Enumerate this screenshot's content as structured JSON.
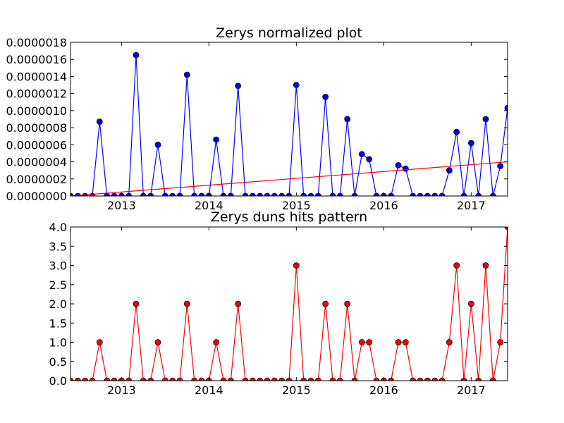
{
  "figure": {
    "background": "#ffffff"
  },
  "chart_data": [
    {
      "type": "line",
      "title": "Zerys normalized plot",
      "xlabel": "",
      "ylabel": "",
      "x_axis": {
        "type": "date",
        "min": "2012-06",
        "max": "2017-06",
        "ticks": [
          "2013-01",
          "2014-01",
          "2015-01",
          "2016-01",
          "2017-01"
        ],
        "tick_labels": [
          "2013",
          "2014",
          "2015",
          "2016",
          "2017"
        ]
      },
      "y_axis": {
        "min": 0.0,
        "max": 1.8e-06,
        "ticks": [
          0.0,
          2e-07,
          4e-07,
          6e-07,
          8e-07,
          1e-06,
          1.2e-06,
          1.4e-06,
          1.6e-06,
          1.8e-06
        ],
        "tick_labels": [
          "0.0000000",
          "0.0000002",
          "0.0000004",
          "0.0000006",
          "0.0000008",
          "0.0000010",
          "0.0000012",
          "0.0000014",
          "0.0000016",
          "0.0000018"
        ]
      },
      "grid": false,
      "x": [
        "2012-06",
        "2012-07",
        "2012-08",
        "2012-09",
        "2012-10",
        "2012-11",
        "2012-12",
        "2013-01",
        "2013-02",
        "2013-03",
        "2013-04",
        "2013-05",
        "2013-06",
        "2013-07",
        "2013-08",
        "2013-09",
        "2013-10",
        "2013-11",
        "2013-12",
        "2014-01",
        "2014-02",
        "2014-03",
        "2014-04",
        "2014-05",
        "2014-06",
        "2014-07",
        "2014-08",
        "2014-09",
        "2014-10",
        "2014-11",
        "2014-12",
        "2015-01",
        "2015-02",
        "2015-03",
        "2015-04",
        "2015-05",
        "2015-06",
        "2015-07",
        "2015-08",
        "2015-09",
        "2015-10",
        "2015-11",
        "2015-12",
        "2016-01",
        "2016-02",
        "2016-03",
        "2016-04",
        "2016-05",
        "2016-06",
        "2016-07",
        "2016-08",
        "2016-09",
        "2016-10",
        "2016-11",
        "2016-12",
        "2017-01",
        "2017-02",
        "2017-03",
        "2017-04",
        "2017-05",
        "2017-06"
      ],
      "series": [
        {
          "color": "#0000ff",
          "marker": "circle",
          "values": [
            0,
            0,
            0,
            0,
            8.7e-07,
            0,
            0,
            0,
            0,
            1.65e-06,
            0,
            0,
            6e-07,
            0,
            0,
            0,
            1.42e-06,
            0,
            0,
            0,
            6.6e-07,
            0,
            0,
            1.29e-06,
            0,
            0,
            0,
            0,
            0,
            0,
            0,
            1.3e-06,
            0,
            0,
            0,
            1.16e-06,
            0,
            0,
            9e-07,
            0,
            4.9e-07,
            4.3e-07,
            0,
            0,
            0,
            3.6e-07,
            3.2e-07,
            0,
            0,
            0,
            0,
            0,
            3e-07,
            7.5e-07,
            0,
            6.2e-07,
            0,
            9e-07,
            0,
            3.5e-07,
            1.03e-06
          ]
        },
        {
          "type": "trendline",
          "color": "#ff0000",
          "x": [
            "2012-06",
            "2017-06"
          ],
          "values": [
            0.0,
            4e-07
          ]
        }
      ]
    },
    {
      "type": "line",
      "title": "Zerys duns hits pattern",
      "xlabel": "",
      "ylabel": "",
      "x_axis": {
        "type": "date",
        "min": "2012-06",
        "max": "2017-06",
        "ticks": [
          "2013-01",
          "2014-01",
          "2015-01",
          "2016-01",
          "2017-01"
        ],
        "tick_labels": [
          "2013",
          "2014",
          "2015",
          "2016",
          "2017"
        ]
      },
      "y_axis": {
        "min": 0.0,
        "max": 4.0,
        "ticks": [
          0.0,
          0.5,
          1.0,
          1.5,
          2.0,
          2.5,
          3.0,
          3.5,
          4.0
        ],
        "tick_labels": [
          "0.0",
          "0.5",
          "1.0",
          "1.5",
          "2.0",
          "2.5",
          "3.0",
          "3.5",
          "4.0"
        ]
      },
      "grid": false,
      "x": [
        "2012-06",
        "2012-07",
        "2012-08",
        "2012-09",
        "2012-10",
        "2012-11",
        "2012-12",
        "2013-01",
        "2013-02",
        "2013-03",
        "2013-04",
        "2013-05",
        "2013-06",
        "2013-07",
        "2013-08",
        "2013-09",
        "2013-10",
        "2013-11",
        "2013-12",
        "2014-01",
        "2014-02",
        "2014-03",
        "2014-04",
        "2014-05",
        "2014-06",
        "2014-07",
        "2014-08",
        "2014-09",
        "2014-10",
        "2014-11",
        "2014-12",
        "2015-01",
        "2015-02",
        "2015-03",
        "2015-04",
        "2015-05",
        "2015-06",
        "2015-07",
        "2015-08",
        "2015-09",
        "2015-10",
        "2015-11",
        "2015-12",
        "2016-01",
        "2016-02",
        "2016-03",
        "2016-04",
        "2016-05",
        "2016-06",
        "2016-07",
        "2016-08",
        "2016-09",
        "2016-10",
        "2016-11",
        "2016-12",
        "2017-01",
        "2017-02",
        "2017-03",
        "2017-04",
        "2017-05",
        "2017-06"
      ],
      "series": [
        {
          "color": "#ff0000",
          "marker": "circle",
          "values": [
            0,
            0,
            0,
            0,
            1,
            0,
            0,
            0,
            0,
            2,
            0,
            0,
            1,
            0,
            0,
            0,
            2,
            0,
            0,
            0,
            1,
            0,
            0,
            2,
            0,
            0,
            0,
            0,
            0,
            0,
            0,
            3,
            0,
            0,
            0,
            2,
            0,
            0,
            2,
            0,
            1,
            1,
            0,
            0,
            0,
            1,
            1,
            0,
            0,
            0,
            0,
            0,
            1,
            3,
            0,
            2,
            0,
            3,
            0,
            1,
            4
          ]
        }
      ]
    }
  ]
}
